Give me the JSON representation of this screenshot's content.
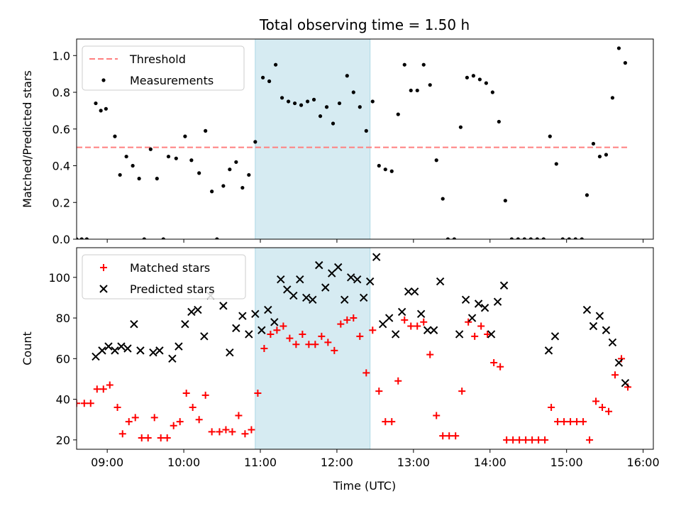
{
  "title": "Total observing time = 1.50 h",
  "xlabel": "Time (UTC)",
  "colors": {
    "threshold": "#ff7f7f",
    "measurement": "#000000",
    "matched": "#ff0000",
    "predicted": "#000000",
    "highlight": "#add8e6"
  },
  "chart_data": [
    {
      "type": "scatter",
      "ylabel": "Matched/Predicted stars",
      "xlim": [
        "08:36",
        "16:08"
      ],
      "ylim": [
        0,
        1.09
      ],
      "yticks": [
        "0.0",
        "0.2",
        "0.4",
        "0.6",
        "0.8",
        "1.0"
      ],
      "xticks": [
        "09:00",
        "10:00",
        "11:00",
        "12:00",
        "13:00",
        "14:00",
        "15:00",
        "16:00"
      ],
      "highlight_span": [
        "10:56",
        "12:26"
      ],
      "legend": {
        "placement": "upper-left",
        "entries": [
          "Threshold",
          "Measurements"
        ]
      },
      "threshold": {
        "name": "Threshold",
        "value": 0.5,
        "x_range": [
          "08:36",
          "15:48"
        ]
      },
      "series": [
        {
          "name": "Measurements",
          "points": [
            [
              "08:36",
              0.0
            ],
            [
              "08:40",
              0.0
            ],
            [
              "08:44",
              0.0
            ],
            [
              "08:51",
              0.74
            ],
            [
              "08:55",
              0.7
            ],
            [
              "08:59",
              0.71
            ],
            [
              "09:06",
              0.56
            ],
            [
              "09:10",
              0.35
            ],
            [
              "09:15",
              0.45
            ],
            [
              "09:20",
              0.4
            ],
            [
              "09:25",
              0.33
            ],
            [
              "09:29",
              0.0
            ],
            [
              "09:34",
              0.49
            ],
            [
              "09:39",
              0.33
            ],
            [
              "09:44",
              0.0
            ],
            [
              "09:48",
              0.45
            ],
            [
              "09:54",
              0.44
            ],
            [
              "10:01",
              0.56
            ],
            [
              "10:06",
              0.43
            ],
            [
              "10:12",
              0.36
            ],
            [
              "10:17",
              0.59
            ],
            [
              "10:22",
              0.26
            ],
            [
              "10:26",
              0.0
            ],
            [
              "10:31",
              0.29
            ],
            [
              "10:36",
              0.38
            ],
            [
              "10:41",
              0.42
            ],
            [
              "10:46",
              0.28
            ],
            [
              "10:51",
              0.35
            ],
            [
              "10:56",
              0.53
            ],
            [
              "11:02",
              0.88
            ],
            [
              "11:07",
              0.86
            ],
            [
              "11:12",
              0.95
            ],
            [
              "11:17",
              0.77
            ],
            [
              "11:22",
              0.75
            ],
            [
              "11:27",
              0.74
            ],
            [
              "11:32",
              0.73
            ],
            [
              "11:37",
              0.75
            ],
            [
              "11:42",
              0.76
            ],
            [
              "11:47",
              0.67
            ],
            [
              "11:52",
              0.72
            ],
            [
              "11:57",
              0.63
            ],
            [
              "12:02",
              0.74
            ],
            [
              "12:08",
              0.89
            ],
            [
              "12:13",
              0.8
            ],
            [
              "12:18",
              0.72
            ],
            [
              "12:23",
              0.59
            ],
            [
              "12:28",
              0.75
            ],
            [
              "12:33",
              0.4
            ],
            [
              "12:38",
              0.38
            ],
            [
              "12:43",
              0.37
            ],
            [
              "12:48",
              0.68
            ],
            [
              "12:53",
              0.95
            ],
            [
              "12:58",
              0.81
            ],
            [
              "13:03",
              0.81
            ],
            [
              "13:08",
              0.95
            ],
            [
              "13:13",
              0.84
            ],
            [
              "13:18",
              0.43
            ],
            [
              "13:23",
              0.22
            ],
            [
              "13:27",
              0.0
            ],
            [
              "13:32",
              0.0
            ],
            [
              "13:37",
              0.61
            ],
            [
              "13:42",
              0.88
            ],
            [
              "13:47",
              0.89
            ],
            [
              "13:52",
              0.87
            ],
            [
              "13:57",
              0.85
            ],
            [
              "14:02",
              0.8
            ],
            [
              "14:07",
              0.64
            ],
            [
              "14:12",
              0.21
            ],
            [
              "14:17",
              0.0
            ],
            [
              "14:22",
              0.0
            ],
            [
              "14:27",
              0.0
            ],
            [
              "14:32",
              0.0
            ],
            [
              "14:37",
              0.0
            ],
            [
              "14:42",
              0.0
            ],
            [
              "14:47",
              0.56
            ],
            [
              "14:52",
              0.41
            ],
            [
              "14:57",
              0.0
            ],
            [
              "15:02",
              0.0
            ],
            [
              "15:07",
              0.0
            ],
            [
              "15:12",
              0.0
            ],
            [
              "15:16",
              0.24
            ],
            [
              "15:21",
              0.52
            ],
            [
              "15:26",
              0.45
            ],
            [
              "15:31",
              0.46
            ],
            [
              "15:36",
              0.77
            ],
            [
              "15:41",
              1.04
            ],
            [
              "15:46",
              0.96
            ]
          ]
        }
      ]
    },
    {
      "type": "scatter",
      "ylabel": "Count",
      "xlim": [
        "08:36",
        "16:08"
      ],
      "ylim": [
        15.4,
        114.6
      ],
      "yticks": [
        "20",
        "40",
        "60",
        "80",
        "100"
      ],
      "xticks": [
        "09:00",
        "10:00",
        "11:00",
        "12:00",
        "13:00",
        "14:00",
        "15:00",
        "16:00"
      ],
      "xticklabels": [
        "09:00",
        "10:00",
        "11:00",
        "12:00",
        "13:00",
        "14:00",
        "15:00",
        "16:00"
      ],
      "highlight_span": [
        "10:56",
        "12:26"
      ],
      "legend": {
        "placement": "upper-left",
        "entries": [
          "Matched stars",
          "Predicted stars"
        ]
      },
      "series": [
        {
          "name": "Matched stars",
          "marker": "plus",
          "points": [
            [
              "08:36",
              38
            ],
            [
              "08:42",
              38
            ],
            [
              "08:47",
              38
            ],
            [
              "08:52",
              45
            ],
            [
              "08:57",
              45
            ],
            [
              "09:02",
              47
            ],
            [
              "09:08",
              36
            ],
            [
              "09:12",
              23
            ],
            [
              "09:17",
              29
            ],
            [
              "09:22",
              31
            ],
            [
              "09:27",
              21
            ],
            [
              "09:32",
              21
            ],
            [
              "09:37",
              31
            ],
            [
              "09:42",
              21
            ],
            [
              "09:47",
              21
            ],
            [
              "09:52",
              27
            ],
            [
              "09:57",
              29
            ],
            [
              "10:02",
              43
            ],
            [
              "10:07",
              36
            ],
            [
              "10:12",
              30
            ],
            [
              "10:17",
              42
            ],
            [
              "10:22",
              24
            ],
            [
              "10:28",
              24
            ],
            [
              "10:33",
              25
            ],
            [
              "10:38",
              24
            ],
            [
              "10:43",
              32
            ],
            [
              "10:48",
              23
            ],
            [
              "10:53",
              25
            ],
            [
              "10:58",
              43
            ],
            [
              "11:03",
              65
            ],
            [
              "11:08",
              72
            ],
            [
              "11:13",
              74
            ],
            [
              "11:18",
              76
            ],
            [
              "11:23",
              70
            ],
            [
              "11:28",
              67
            ],
            [
              "11:33",
              72
            ],
            [
              "11:38",
              67
            ],
            [
              "11:43",
              67
            ],
            [
              "11:48",
              71
            ],
            [
              "11:53",
              68
            ],
            [
              "11:58",
              64
            ],
            [
              "12:03",
              77
            ],
            [
              "12:08",
              79
            ],
            [
              "12:13",
              80
            ],
            [
              "12:18",
              71
            ],
            [
              "12:23",
              53
            ],
            [
              "12:28",
              74
            ],
            [
              "12:33",
              44
            ],
            [
              "12:38",
              29
            ],
            [
              "12:43",
              29
            ],
            [
              "12:48",
              49
            ],
            [
              "12:53",
              79
            ],
            [
              "12:58",
              76
            ],
            [
              "13:03",
              76
            ],
            [
              "13:08",
              78
            ],
            [
              "13:13",
              62
            ],
            [
              "13:18",
              32
            ],
            [
              "13:23",
              22
            ],
            [
              "13:28",
              22
            ],
            [
              "13:33",
              22
            ],
            [
              "13:38",
              44
            ],
            [
              "13:43",
              78
            ],
            [
              "13:48",
              71
            ],
            [
              "13:53",
              76
            ],
            [
              "13:58",
              72
            ],
            [
              "14:03",
              58
            ],
            [
              "14:08",
              56
            ],
            [
              "14:13",
              20
            ],
            [
              "14:18",
              20
            ],
            [
              "14:23",
              20
            ],
            [
              "14:28",
              20
            ],
            [
              "14:33",
              20
            ],
            [
              "14:38",
              20
            ],
            [
              "14:43",
              20
            ],
            [
              "14:48",
              36
            ],
            [
              "14:53",
              29
            ],
            [
              "14:58",
              29
            ],
            [
              "15:03",
              29
            ],
            [
              "15:08",
              29
            ],
            [
              "15:13",
              29
            ],
            [
              "15:18",
              20
            ],
            [
              "15:23",
              39
            ],
            [
              "15:28",
              36
            ],
            [
              "15:33",
              34
            ],
            [
              "15:38",
              52
            ],
            [
              "15:43",
              60
            ],
            [
              "15:48",
              46
            ]
          ]
        },
        {
          "name": "Predicted stars",
          "marker": "x",
          "points": [
            [
              "08:51",
              61
            ],
            [
              "08:56",
              64
            ],
            [
              "09:01",
              66
            ],
            [
              "09:06",
              64
            ],
            [
              "09:11",
              66
            ],
            [
              "09:16",
              65
            ],
            [
              "09:21",
              77
            ],
            [
              "09:26",
              64
            ],
            [
              "09:36",
              63
            ],
            [
              "09:41",
              64
            ],
            [
              "09:51",
              60
            ],
            [
              "09:56",
              66
            ],
            [
              "10:01",
              77
            ],
            [
              "10:06",
              83
            ],
            [
              "10:11",
              84
            ],
            [
              "10:16",
              71
            ],
            [
              "10:21",
              91
            ],
            [
              "10:31",
              86
            ],
            [
              "10:36",
              63
            ],
            [
              "10:41",
              75
            ],
            [
              "10:46",
              81
            ],
            [
              "10:51",
              72
            ],
            [
              "10:56",
              82
            ],
            [
              "11:01",
              74
            ],
            [
              "11:06",
              84
            ],
            [
              "11:11",
              78
            ],
            [
              "11:16",
              99
            ],
            [
              "11:21",
              94
            ],
            [
              "11:26",
              91
            ],
            [
              "11:31",
              99
            ],
            [
              "11:36",
              90
            ],
            [
              "11:41",
              89
            ],
            [
              "11:46",
              106
            ],
            [
              "11:51",
              95
            ],
            [
              "11:56",
              102
            ],
            [
              "12:01",
              105
            ],
            [
              "12:06",
              89
            ],
            [
              "12:11",
              100
            ],
            [
              "12:16",
              99
            ],
            [
              "12:21",
              90
            ],
            [
              "12:26",
              98
            ],
            [
              "12:31",
              110
            ],
            [
              "12:36",
              77
            ],
            [
              "12:41",
              80
            ],
            [
              "12:46",
              72
            ],
            [
              "12:51",
              83
            ],
            [
              "12:56",
              93
            ],
            [
              "13:01",
              93
            ],
            [
              "13:06",
              82
            ],
            [
              "13:11",
              74
            ],
            [
              "13:16",
              74
            ],
            [
              "13:21",
              98
            ],
            [
              "13:36",
              72
            ],
            [
              "13:41",
              89
            ],
            [
              "13:46",
              80
            ],
            [
              "13:51",
              87
            ],
            [
              "13:56",
              85
            ],
            [
              "14:01",
              72
            ],
            [
              "14:06",
              88
            ],
            [
              "14:11",
              96
            ],
            [
              "14:46",
              64
            ],
            [
              "14:51",
              71
            ],
            [
              "15:16",
              84
            ],
            [
              "15:21",
              76
            ],
            [
              "15:26",
              81
            ],
            [
              "15:31",
              74
            ],
            [
              "15:36",
              68
            ],
            [
              "15:41",
              58
            ],
            [
              "15:46",
              48
            ]
          ]
        }
      ]
    }
  ]
}
